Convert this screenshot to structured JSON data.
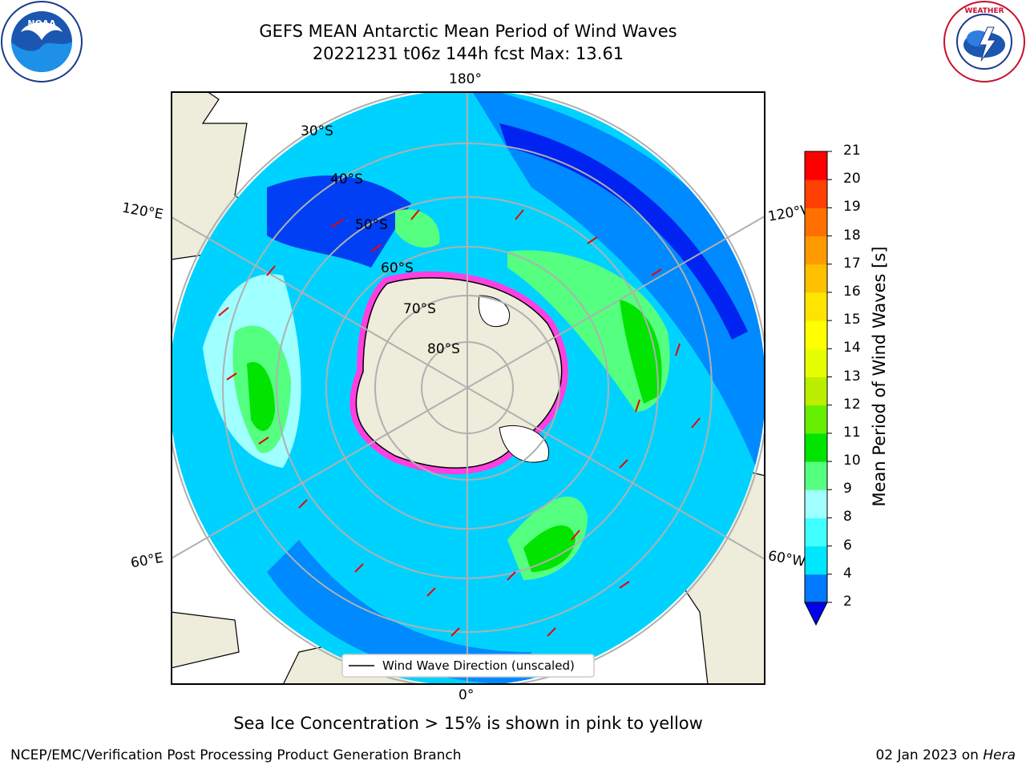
{
  "header": {
    "title": "GEFS MEAN Antarctic Mean Period of Wind Waves",
    "subtitle": "20221231 t06z 144h fcst   Max: 13.61"
  },
  "logos": {
    "left": "NOAA",
    "right": "NATIONAL WEATHER SERVICE"
  },
  "map": {
    "longitude_labels": {
      "top": "180°",
      "bottom": "0°",
      "left_upper": "120°E",
      "left_lower": "60°E",
      "right_upper": "120°W",
      "right_lower": "60°W"
    },
    "latitude_labels": [
      "30°S",
      "40°S",
      "50°S",
      "60°S",
      "70°S",
      "80°S"
    ],
    "legend": "Wind Wave Direction (unscaled)",
    "colors": {
      "land": "#eeecda",
      "ocean_low": "#0078ff",
      "ocean_mid": "#00d2ff",
      "ocean_high": "#00e64b",
      "arrow": "#ee0000",
      "ice": "#ff40e0"
    }
  },
  "colorbar": {
    "label": "Mean Period of Wind Waves [s]",
    "ticks": [
      "2",
      "4",
      "6",
      "8",
      "9",
      "10",
      "11",
      "12",
      "13",
      "14",
      "15",
      "16",
      "17",
      "18",
      "19",
      "20",
      "21"
    ],
    "colors": [
      "#0078ff",
      "#00e6ff",
      "#40ffff",
      "#a0ffff",
      "#55ff80",
      "#00e400",
      "#66ee00",
      "#bbee00",
      "#e6ff00",
      "#ffff00",
      "#ffe400",
      "#ffc000",
      "#ff9a00",
      "#ff7000",
      "#ff4000",
      "#ff0000"
    ],
    "under_color": "#0000ee"
  },
  "footer": {
    "ice_note": "Sea Ice Concentration > 15% is shown in pink to yellow",
    "credit": "NCEP/EMC/Verification Post Processing Product Generation Branch",
    "date": "02 Jan 2023 on ",
    "host": "Hera"
  }
}
